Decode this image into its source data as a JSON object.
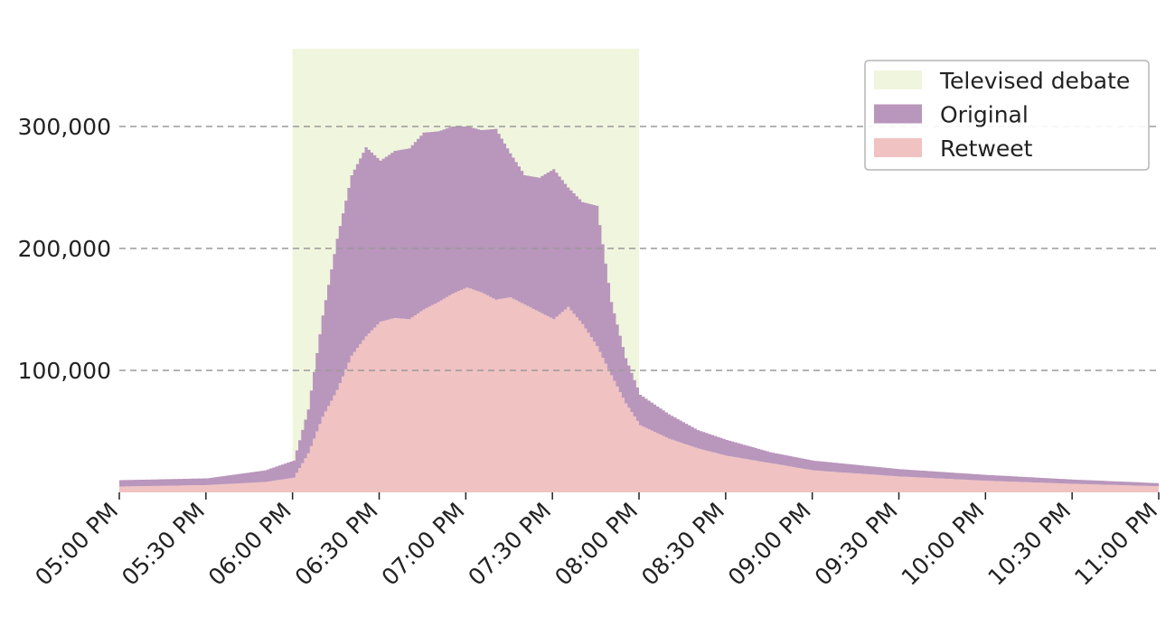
{
  "chart_data": {
    "type": "area",
    "title": "",
    "xlabel": "",
    "ylabel": "",
    "x_range": [
      "05:00 PM",
      "11:00 PM"
    ],
    "ylim": [
      0,
      300000
    ],
    "y_ticks": [
      100000,
      200000,
      300000
    ],
    "y_tick_labels": [
      "100,000",
      "200,000",
      "300,000"
    ],
    "x_tick_labels": [
      "05:00 PM",
      "05:30 PM",
      "06:00 PM",
      "06:30 PM",
      "07:00 PM",
      "07:30 PM",
      "08:00 PM",
      "08:30 PM",
      "09:00 PM",
      "09:30 PM",
      "10:00 PM",
      "10:30 PM",
      "11:00 PM"
    ],
    "grid": "horizontal dashed",
    "stacked": true,
    "legend_position": "top-right",
    "highlight": {
      "name": "Televised debate",
      "start": "06:00 PM",
      "end": "08:00 PM",
      "color": "#f0f5dd"
    },
    "series": [
      {
        "name": "Retweet",
        "color": "#f0c2c2",
        "points": [
          [
            "05:00 PM",
            4800
          ],
          [
            "05:30 PM",
            6000
          ],
          [
            "05:50 PM",
            8500
          ],
          [
            "06:00 PM",
            12000
          ],
          [
            "06:05 PM",
            32000
          ],
          [
            "06:10 PM",
            62000
          ],
          [
            "06:15 PM",
            84000
          ],
          [
            "06:20 PM",
            112000
          ],
          [
            "06:25 PM",
            128000
          ],
          [
            "06:30 PM",
            140000
          ],
          [
            "06:35 PM",
            143000
          ],
          [
            "06:40 PM",
            142000
          ],
          [
            "06:45 PM",
            150000
          ],
          [
            "06:50 PM",
            156000
          ],
          [
            "06:55 PM",
            163000
          ],
          [
            "07:00 PM",
            168000
          ],
          [
            "07:05 PM",
            164000
          ],
          [
            "07:10 PM",
            158000
          ],
          [
            "07:15 PM",
            160000
          ],
          [
            "07:20 PM",
            154000
          ],
          [
            "07:25 PM",
            148000
          ],
          [
            "07:30 PM",
            142000
          ],
          [
            "07:35 PM",
            152000
          ],
          [
            "07:40 PM",
            138000
          ],
          [
            "07:45 PM",
            120000
          ],
          [
            "07:50 PM",
            96000
          ],
          [
            "07:55 PM",
            73000
          ],
          [
            "08:00 PM",
            55000
          ],
          [
            "08:10 PM",
            44000
          ],
          [
            "08:20 PM",
            36000
          ],
          [
            "08:30 PM",
            30000
          ],
          [
            "08:45 PM",
            24000
          ],
          [
            "09:00 PM",
            18000
          ],
          [
            "09:30 PM",
            13000
          ],
          [
            "10:00 PM",
            9500
          ],
          [
            "10:30 PM",
            7000
          ],
          [
            "11:00 PM",
            5000
          ]
        ]
      },
      {
        "name": "Original",
        "color": "#b996bc",
        "points": [
          [
            "05:00 PM",
            5200
          ],
          [
            "05:30 PM",
            5500
          ],
          [
            "05:50 PM",
            9500
          ],
          [
            "06:00 PM",
            14000
          ],
          [
            "06:05 PM",
            36000
          ],
          [
            "06:10 PM",
            83000
          ],
          [
            "06:15 PM",
            124000
          ],
          [
            "06:20 PM",
            148000
          ],
          [
            "06:25 PM",
            155000
          ],
          [
            "06:30 PM",
            132000
          ],
          [
            "06:35 PM",
            137000
          ],
          [
            "06:40 PM",
            140000
          ],
          [
            "06:45 PM",
            145000
          ],
          [
            "06:50 PM",
            140000
          ],
          [
            "06:55 PM",
            137000
          ],
          [
            "07:00 PM",
            132000
          ],
          [
            "07:05 PM",
            133000
          ],
          [
            "07:10 PM",
            140000
          ],
          [
            "07:15 PM",
            118000
          ],
          [
            "07:20 PM",
            106000
          ],
          [
            "07:25 PM",
            110000
          ],
          [
            "07:30 PM",
            123000
          ],
          [
            "07:35 PM",
            98000
          ],
          [
            "07:40 PM",
            100000
          ],
          [
            "07:45 PM",
            115000
          ],
          [
            "07:50 PM",
            60000
          ],
          [
            "07:55 PM",
            37000
          ],
          [
            "08:00 PM",
            25000
          ],
          [
            "08:10 PM",
            20000
          ],
          [
            "08:20 PM",
            15000
          ],
          [
            "08:30 PM",
            13000
          ],
          [
            "08:45 PM",
            9000
          ],
          [
            "09:00 PM",
            8000
          ],
          [
            "09:30 PM",
            6000
          ],
          [
            "10:00 PM",
            4800
          ],
          [
            "10:30 PM",
            3500
          ],
          [
            "11:00 PM",
            2500
          ]
        ]
      }
    ]
  }
}
